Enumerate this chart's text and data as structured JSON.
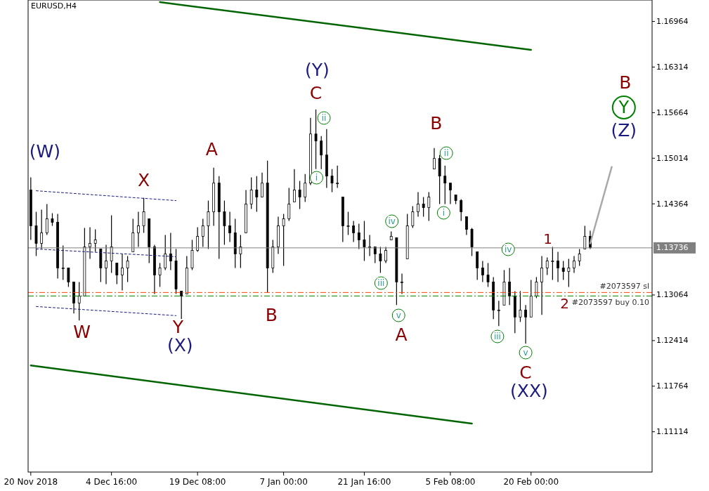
{
  "chart_data": {
    "type": "candlestick",
    "title": "EURUSD,H4",
    "color": "#000000",
    "categories": [
      "20 Nov 2018",
      null,
      null,
      null,
      null,
      null,
      null,
      null,
      null,
      null,
      null,
      null,
      null,
      null,
      null,
      "4 Dec 16:00",
      null,
      null,
      null,
      null,
      null,
      null,
      null,
      null,
      null,
      null,
      null,
      null,
      null,
      null,
      null,
      "19 Dec 08:00",
      null,
      null,
      null,
      null,
      null,
      null,
      null,
      null,
      null,
      null,
      null,
      null,
      null,
      null,
      null,
      "7 Jan 00:00",
      null,
      null,
      null,
      null,
      null,
      null,
      null,
      null,
      null,
      null,
      null,
      null,
      null,
      null,
      "21 Jan 16:00",
      null,
      null,
      null,
      null,
      null,
      null,
      null,
      null,
      null,
      null,
      null,
      null,
      null,
      null,
      null,
      "5 Feb 08:00",
      null,
      null,
      null,
      null,
      null,
      null,
      null,
      null,
      null,
      null,
      null,
      null,
      null,
      null,
      "20 Feb 00:00",
      null,
      null,
      null,
      null,
      null,
      null,
      null,
      null,
      null,
      null,
      null,
      null,
      null,
      null,
      null,
      null,
      null,
      null,
      null,
      null,
      null,
      null
    ],
    "ohlc": [
      [
        1.1456,
        1.1474,
        1.1385,
        1.1405
      ],
      [
        1.1405,
        1.1425,
        1.1362,
        1.138
      ],
      [
        1.138,
        1.1428,
        1.1372,
        1.1395
      ],
      [
        1.1395,
        1.1436,
        1.1392,
        1.1415
      ],
      [
        1.1415,
        1.1423,
        1.1405,
        1.141
      ],
      [
        1.141,
        1.1422,
        1.133,
        1.1345
      ],
      [
        1.1345,
        1.1377,
        1.1328,
        1.1345
      ],
      [
        1.1345,
        1.1345,
        1.1318,
        1.1325
      ],
      [
        1.1325,
        1.1325,
        1.128,
        1.1295
      ],
      [
        1.1295,
        1.1325,
        1.127,
        1.1305
      ],
      [
        1.1305,
        1.1402,
        1.1305,
        1.1375
      ],
      [
        1.1375,
        1.1403,
        1.1358,
        1.138
      ],
      [
        1.138,
        1.14,
        1.1368,
        1.1385
      ],
      [
        1.1372,
        1.1372,
        1.1325,
        1.1345
      ],
      [
        1.1345,
        1.1378,
        1.1322,
        1.1355
      ],
      [
        1.1355,
        1.142,
        1.1338,
        1.1375
      ],
      [
        1.1352,
        1.1352,
        1.1322,
        1.1335
      ],
      [
        1.1335,
        1.1365,
        1.1313,
        1.1345
      ],
      [
        1.1345,
        1.1362,
        1.1325,
        1.1355
      ],
      [
        1.1368,
        1.1415,
        1.1368,
        1.1395
      ],
      [
        1.1395,
        1.1425,
        1.1375,
        1.1405
      ],
      [
        1.1405,
        1.1445,
        1.1395,
        1.1425
      ],
      [
        1.1415,
        1.1415,
        1.1352,
        1.1375
      ],
      [
        1.1375,
        1.1378,
        1.1308,
        1.1335
      ],
      [
        1.1335,
        1.1352,
        1.1318,
        1.1345
      ],
      [
        1.1345,
        1.1392,
        1.1342,
        1.1365
      ],
      [
        1.1365,
        1.1395,
        1.1342,
        1.1355
      ],
      [
        1.1355,
        1.1372,
        1.1308,
        1.1315
      ],
      [
        1.1312,
        1.1312,
        1.1272,
        1.1305
      ],
      [
        1.1308,
        1.1362,
        1.1308,
        1.1345
      ],
      [
        1.1345,
        1.1385,
        1.1342,
        1.137
      ],
      [
        1.137,
        1.1403,
        1.1368,
        1.139
      ],
      [
        1.139,
        1.1415,
        1.1375,
        1.1405
      ],
      [
        1.1405,
        1.1441,
        1.1372,
        1.1425
      ],
      [
        1.1425,
        1.1488,
        1.1405,
        1.1466
      ],
      [
        1.1466,
        1.1476,
        1.1358,
        1.1425
      ],
      [
        1.1425,
        1.1441,
        1.1378,
        1.1405
      ],
      [
        1.1405,
        1.1425,
        1.1382,
        1.1395
      ],
      [
        1.1395,
        1.1415,
        1.1345,
        1.1365
      ],
      [
        1.1365,
        1.1392,
        1.1345,
        1.1375
      ],
      [
        1.1395,
        1.1456,
        1.1395,
        1.1436
      ],
      [
        1.1436,
        1.1474,
        1.1429,
        1.1456
      ],
      [
        1.1456,
        1.1476,
        1.1425,
        1.1446
      ],
      [
        1.1446,
        1.1481,
        1.1446,
        1.1466
      ],
      [
        1.1466,
        1.1498,
        1.131,
        1.1345
      ],
      [
        1.1345,
        1.1385,
        1.1338,
        1.1375
      ],
      [
        1.1375,
        1.1418,
        1.1365,
        1.1405
      ],
      [
        1.1405,
        1.1422,
        1.1348,
        1.1415
      ],
      [
        1.1415,
        1.1459,
        1.1412,
        1.1436
      ],
      [
        1.1439,
        1.1486,
        1.1439,
        1.1456
      ],
      [
        1.1456,
        1.1469,
        1.1429,
        1.1446
      ],
      [
        1.1446,
        1.1479,
        1.1439,
        1.1466
      ],
      [
        1.1466,
        1.1559,
        1.1463,
        1.1536
      ],
      [
        1.1536,
        1.1571,
        1.1486,
        1.1526
      ],
      [
        1.1526,
        1.1533,
        1.1486,
        1.1506
      ],
      [
        1.1506,
        1.1543,
        1.1459,
        1.1476
      ],
      [
        1.1476,
        1.1486,
        1.1453,
        1.1466
      ],
      [
        1.1466,
        1.1491,
        1.1459,
        1.1466
      ],
      [
        1.1446,
        1.1446,
        1.1382,
        1.1405
      ],
      [
        1.1405,
        1.1425,
        1.1392,
        1.1405
      ],
      [
        1.1405,
        1.1412,
        1.1382,
        1.1395
      ],
      [
        1.1395,
        1.1408,
        1.1372,
        1.1385
      ],
      [
        1.1385,
        1.1412,
        1.1355,
        1.1375
      ],
      [
        1.1375,
        1.1392,
        1.1362,
        1.1375
      ],
      [
        1.1375,
        1.1375,
        1.1352,
        1.1365
      ],
      [
        1.1365,
        1.1375,
        1.1338,
        1.1355
      ],
      [
        1.1355,
        1.1375,
        1.1352,
        1.137
      ],
      [
        1.1385,
        1.1397,
        1.1385,
        1.139
      ],
      [
        1.1388,
        1.1388,
        1.1292,
        1.1325
      ],
      [
        1.1325,
        1.1337,
        1.1308,
        1.1325
      ],
      [
        1.1358,
        1.1422,
        1.1358,
        1.1405
      ],
      [
        1.1405,
        1.1433,
        1.1402,
        1.1425
      ],
      [
        1.1425,
        1.1453,
        1.1418,
        1.1436
      ],
      [
        1.1436,
        1.1446,
        1.1418,
        1.1431
      ],
      [
        1.1431,
        1.1453,
        1.1412,
        1.1446
      ],
      [
        1.1486,
        1.1516,
        1.1486,
        1.1501
      ],
      [
        1.1501,
        1.1506,
        1.1436,
        1.1476
      ],
      [
        1.1476,
        1.1491,
        1.1436,
        1.1466
      ],
      [
        1.1466,
        1.1466,
        1.1436,
        1.1456
      ],
      [
        1.1449,
        1.1449,
        1.1436,
        1.1441
      ],
      [
        1.1441,
        1.1443,
        1.1412,
        1.1425
      ],
      [
        1.1418,
        1.1418,
        1.1392,
        1.14
      ],
      [
        1.14,
        1.1402,
        1.1362,
        1.1375
      ],
      [
        1.1368,
        1.1368,
        1.1328,
        1.1345
      ],
      [
        1.1345,
        1.1355,
        1.1325,
        1.1335
      ],
      [
        1.1335,
        1.1352,
        1.1318,
        1.1325
      ],
      [
        1.1325,
        1.1332,
        1.1272,
        1.1285
      ],
      [
        1.1285,
        1.1298,
        1.1262,
        1.1285
      ],
      [
        1.1292,
        1.1342,
        1.1292,
        1.1325
      ],
      [
        1.1325,
        1.1345,
        1.1292,
        1.1305
      ],
      [
        1.1305,
        1.1312,
        1.1252,
        1.1275
      ],
      [
        1.1275,
        1.1312,
        1.1268,
        1.1285
      ],
      [
        1.1285,
        1.1292,
        1.1237,
        1.1275
      ],
      [
        1.1275,
        1.1328,
        1.1275,
        1.1305
      ],
      [
        1.1305,
        1.1332,
        1.1302,
        1.1325
      ],
      [
        1.1325,
        1.1362,
        1.1278,
        1.1345
      ],
      [
        1.1345,
        1.136,
        1.1335,
        1.1355
      ],
      [
        1.1355,
        1.1375,
        1.1328,
        1.1355
      ],
      [
        1.1355,
        1.1368,
        1.1325,
        1.1345
      ],
      [
        1.1345,
        1.1355,
        1.1328,
        1.134
      ],
      [
        1.134,
        1.1358,
        1.1318,
        1.1345
      ],
      [
        1.1345,
        1.1362,
        1.1338,
        1.1355
      ],
      [
        1.1355,
        1.1372,
        1.1348,
        1.1365
      ],
      [
        1.1372,
        1.1405,
        1.1372,
        1.139
      ],
      [
        1.139,
        1.1398,
        1.1372,
        1.1374
      ],
      null,
      null,
      null,
      null,
      null,
      null,
      null,
      null,
      null,
      null,
      null
    ],
    "ylim": [
      1.1054,
      1.1727
    ],
    "yticks": [
      1.11114,
      1.11764,
      1.12414,
      1.13064,
      1.14364,
      1.15014,
      1.15664,
      1.16314,
      1.16964
    ],
    "ref_lines": [
      {
        "axis": "y",
        "value": 1.13736,
        "label": "1.13736",
        "color": "#808080",
        "line_style": "solid"
      },
      {
        "axis": "y",
        "value": 1.131,
        "label": "#2073597 sl",
        "color": "#ff4500",
        "line_style": "dashed"
      },
      {
        "axis": "y",
        "value": 1.1305,
        "label": "#2073597 buy 0.10",
        "color": "#008000",
        "line_style": "dashed"
      }
    ],
    "series": [
      {
        "type": "line",
        "color": "#1a1a80",
        "line_style": "dotted",
        "values": [
          null,
          1.1455,
          null,
          null,
          null,
          null,
          null,
          null,
          null,
          null,
          null,
          null,
          null,
          null,
          null,
          null,
          null,
          null,
          null,
          null,
          null,
          null,
          null,
          null,
          null,
          null,
          null,
          1.1441,
          null,
          null,
          null,
          null,
          null,
          null,
          null,
          null,
          null,
          null,
          null,
          null,
          null,
          null,
          null,
          null,
          null,
          null,
          null,
          null,
          null,
          null,
          null,
          null,
          null,
          null,
          null,
          null,
          null,
          null,
          null,
          null,
          null,
          null,
          null,
          null,
          null,
          null,
          null,
          null,
          null,
          null,
          null,
          null,
          null,
          null,
          null,
          null,
          null,
          null,
          null,
          null,
          null,
          null,
          null,
          null,
          null,
          null,
          null,
          null,
          null,
          null,
          null,
          null,
          null,
          null,
          null,
          null,
          null,
          null,
          null,
          null,
          null,
          null,
          null,
          null,
          null,
          null,
          null,
          null,
          null,
          null,
          null,
          null,
          null,
          null,
          null,
          null
        ]
      },
      {
        "type": "line",
        "color": "#1a1a80",
        "line_style": "dotted",
        "values": [
          null,
          1.1372,
          null,
          null,
          null,
          null,
          null,
          null,
          null,
          null,
          null,
          null,
          null,
          null,
          null,
          null,
          null,
          null,
          null,
          null,
          null,
          null,
          null,
          null,
          null,
          null,
          null,
          1.1361,
          null,
          null,
          null,
          null,
          null,
          null,
          null,
          null,
          null,
          null,
          null,
          null,
          null,
          null,
          null,
          null,
          null,
          null,
          null,
          null,
          null,
          null,
          null,
          null,
          null,
          null,
          null,
          null,
          null,
          null,
          null,
          null,
          null,
          null,
          null,
          null,
          null,
          null,
          null,
          null,
          null,
          null,
          null,
          null,
          null,
          null,
          null,
          null,
          null,
          null,
          null,
          null,
          null,
          null,
          null,
          null,
          null,
          null,
          null,
          null,
          null,
          null,
          null,
          null,
          null,
          null,
          null,
          null,
          null,
          null,
          null,
          null,
          null,
          null,
          null,
          null,
          null,
          null,
          null,
          null,
          null,
          null,
          null,
          null,
          null,
          null,
          null,
          null
        ]
      },
      {
        "type": "line",
        "color": "#1a1a80",
        "line_style": "dotted",
        "values": [
          null,
          1.129,
          null,
          null,
          null,
          null,
          null,
          null,
          null,
          null,
          null,
          null,
          null,
          null,
          null,
          null,
          null,
          null,
          null,
          null,
          null,
          null,
          null,
          null,
          null,
          null,
          null,
          1.1277,
          null,
          null,
          null,
          null,
          null,
          null,
          null,
          null,
          null,
          null,
          null,
          null,
          null,
          null,
          null,
          null,
          null,
          null,
          null,
          null,
          null,
          null,
          null,
          null,
          null,
          null,
          null,
          null,
          null,
          null,
          null,
          null,
          null,
          null,
          null,
          null,
          null,
          null,
          null,
          null,
          null,
          null,
          null,
          null,
          null,
          null,
          null,
          null,
          null,
          null,
          null,
          null,
          null,
          null,
          null,
          null,
          null,
          null,
          null,
          null,
          null,
          null,
          null,
          null,
          null,
          null,
          null,
          null,
          null,
          null,
          null,
          null,
          null,
          null,
          null,
          null,
          null,
          null,
          null,
          null,
          null,
          null,
          null,
          null,
          null,
          null,
          null,
          null
        ]
      },
      {
        "type": "line",
        "color": "#006400",
        "line_style": "solid",
        "values": [
          null,
          null,
          null,
          null,
          null,
          null,
          null,
          null,
          null,
          null,
          null,
          null,
          null,
          null,
          null,
          null,
          null,
          null,
          null,
          null,
          null,
          null,
          null,
          null,
          1.1724,
          null,
          null,
          null,
          null,
          null,
          null,
          null,
          null,
          null,
          null,
          null,
          null,
          null,
          null,
          null,
          null,
          null,
          null,
          null,
          null,
          null,
          null,
          null,
          null,
          null,
          null,
          null,
          null,
          null,
          null,
          null,
          null,
          null,
          null,
          null,
          null,
          null,
          null,
          null,
          null,
          null,
          null,
          null,
          null,
          null,
          null,
          null,
          null,
          null,
          null,
          null,
          null,
          null,
          null,
          null,
          null,
          null,
          null,
          null,
          null,
          null,
          null,
          null,
          null,
          null,
          null,
          null,
          null,
          1.1656,
          null,
          null,
          null,
          null,
          null,
          null,
          null,
          null,
          null,
          null,
          null,
          null,
          null,
          null,
          null,
          null,
          null,
          null,
          null,
          null,
          null,
          null
        ]
      },
      {
        "type": "line",
        "color": "#006400",
        "line_style": "solid",
        "values": [
          1.1206,
          null,
          null,
          null,
          null,
          null,
          null,
          null,
          null,
          null,
          null,
          null,
          null,
          null,
          null,
          null,
          null,
          null,
          null,
          null,
          null,
          null,
          null,
          null,
          null,
          null,
          null,
          null,
          null,
          null,
          null,
          null,
          null,
          null,
          null,
          null,
          null,
          null,
          null,
          null,
          null,
          null,
          null,
          null,
          null,
          null,
          null,
          null,
          null,
          null,
          null,
          null,
          null,
          null,
          null,
          null,
          null,
          null,
          null,
          null,
          null,
          null,
          null,
          null,
          null,
          null,
          null,
          null,
          null,
          null,
          null,
          null,
          null,
          null,
          null,
          null,
          null,
          null,
          null,
          null,
          null,
          null,
          1.1123,
          null,
          null,
          null,
          null,
          null,
          null,
          null,
          null,
          null,
          null,
          null,
          null,
          null,
          null,
          null,
          null,
          null,
          null,
          null,
          null,
          null,
          null,
          null,
          null,
          null,
          null,
          null,
          null,
          null,
          null,
          null,
          null,
          null
        ]
      },
      {
        "type": "line",
        "color": "#a9a9a9",
        "line_style": "solid",
        "values": [
          null,
          null,
          null,
          null,
          null,
          null,
          null,
          null,
          null,
          null,
          null,
          null,
          null,
          null,
          null,
          null,
          null,
          null,
          null,
          null,
          null,
          null,
          null,
          null,
          null,
          null,
          null,
          null,
          null,
          null,
          null,
          null,
          null,
          null,
          null,
          null,
          null,
          null,
          null,
          null,
          null,
          null,
          null,
          null,
          null,
          null,
          null,
          null,
          null,
          null,
          null,
          null,
          null,
          null,
          null,
          null,
          null,
          null,
          null,
          null,
          null,
          null,
          null,
          null,
          null,
          null,
          null,
          null,
          null,
          null,
          null,
          null,
          null,
          null,
          null,
          null,
          null,
          null,
          null,
          null,
          null,
          null,
          null,
          null,
          null,
          null,
          null,
          null,
          null,
          null,
          null,
          null,
          null,
          null,
          null,
          null,
          null,
          null,
          null,
          null,
          null,
          null,
          null,
          null,
          1.138,
          null,
          null,
          null,
          1.1489,
          null,
          null,
          null,
          null,
          null,
          null,
          null
        ]
      }
    ],
    "annotations": [
      "(W)",
      "W",
      "X",
      "Y",
      "(X)",
      "A",
      "B",
      "(Y)",
      "C",
      "ii",
      "i",
      "iv",
      "iii",
      "v",
      "A",
      "B",
      "ii",
      "i",
      "iv",
      "iii",
      "v",
      "C",
      "(XX)",
      "1",
      "2",
      "B",
      "Y",
      "(Z)"
    ]
  }
}
